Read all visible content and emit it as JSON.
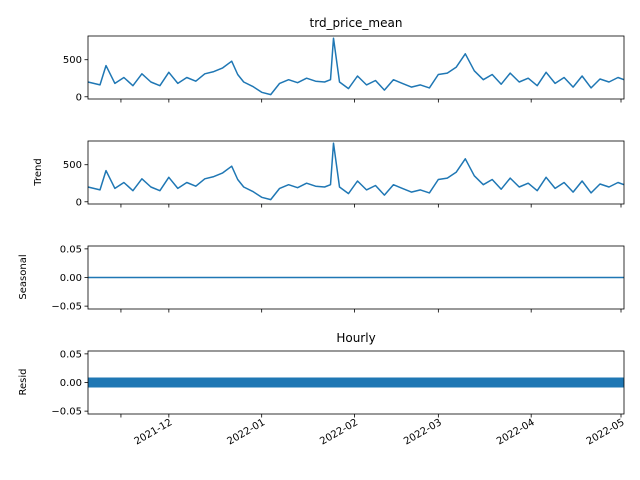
{
  "chart_data": [
    {
      "type": "line",
      "panel": "observed",
      "title": "trd_price_mean",
      "ylabel": "",
      "ylim": [
        -30,
        820
      ],
      "yticks": [
        0,
        500
      ],
      "ytick_labels": [
        "0",
        "500"
      ],
      "series": [
        {
          "color": "#1f77b4",
          "x": [
            "2021-11-04",
            "2021-11-08",
            "2021-11-10",
            "2021-11-13",
            "2021-11-16",
            "2021-11-19",
            "2021-11-22",
            "2021-11-25",
            "2021-11-28",
            "2021-12-01",
            "2021-12-04",
            "2021-12-07",
            "2021-12-10",
            "2021-12-13",
            "2021-12-16",
            "2021-12-19",
            "2021-12-22",
            "2021-12-24",
            "2021-12-26",
            "2021-12-29",
            "2022-01-01",
            "2022-01-04",
            "2022-01-07",
            "2022-01-10",
            "2022-01-13",
            "2022-01-16",
            "2022-01-19",
            "2022-01-22",
            "2022-01-24",
            "2022-01-25",
            "2022-01-27",
            "2022-01-30",
            "2022-02-02",
            "2022-02-05",
            "2022-02-08",
            "2022-02-11",
            "2022-02-14",
            "2022-02-17",
            "2022-02-20",
            "2022-02-23",
            "2022-02-26",
            "2022-03-01",
            "2022-03-04",
            "2022-03-07",
            "2022-03-10",
            "2022-03-13",
            "2022-03-16",
            "2022-03-19",
            "2022-03-22",
            "2022-03-25",
            "2022-03-28",
            "2022-03-31",
            "2022-04-03",
            "2022-04-06",
            "2022-04-09",
            "2022-04-12",
            "2022-04-15",
            "2022-04-18",
            "2022-04-21",
            "2022-04-24",
            "2022-04-27",
            "2022-04-30",
            "2022-05-02"
          ],
          "values": [
            200,
            160,
            420,
            180,
            260,
            150,
            310,
            200,
            150,
            330,
            180,
            260,
            210,
            310,
            340,
            390,
            480,
            300,
            200,
            140,
            60,
            30,
            180,
            230,
            190,
            250,
            210,
            200,
            230,
            790,
            200,
            110,
            280,
            160,
            220,
            90,
            230,
            180,
            130,
            160,
            120,
            300,
            320,
            400,
            580,
            350,
            230,
            300,
            170,
            320,
            200,
            250,
            150,
            330,
            180,
            260,
            130,
            280,
            120,
            240,
            200,
            260,
            230
          ]
        }
      ]
    },
    {
      "type": "line",
      "panel": "trend",
      "title": "",
      "ylabel": "Trend",
      "ylim": [
        -30,
        820
      ],
      "yticks": [
        0,
        500
      ],
      "ytick_labels": [
        "0",
        "500"
      ],
      "series": [
        {
          "color": "#1f77b4",
          "x": [
            "2021-11-04",
            "2021-11-08",
            "2021-11-10",
            "2021-11-13",
            "2021-11-16",
            "2021-11-19",
            "2021-11-22",
            "2021-11-25",
            "2021-11-28",
            "2021-12-01",
            "2021-12-04",
            "2021-12-07",
            "2021-12-10",
            "2021-12-13",
            "2021-12-16",
            "2021-12-19",
            "2021-12-22",
            "2021-12-24",
            "2021-12-26",
            "2021-12-29",
            "2022-01-01",
            "2022-01-04",
            "2022-01-07",
            "2022-01-10",
            "2022-01-13",
            "2022-01-16",
            "2022-01-19",
            "2022-01-22",
            "2022-01-24",
            "2022-01-25",
            "2022-01-27",
            "2022-01-30",
            "2022-02-02",
            "2022-02-05",
            "2022-02-08",
            "2022-02-11",
            "2022-02-14",
            "2022-02-17",
            "2022-02-20",
            "2022-02-23",
            "2022-02-26",
            "2022-03-01",
            "2022-03-04",
            "2022-03-07",
            "2022-03-10",
            "2022-03-13",
            "2022-03-16",
            "2022-03-19",
            "2022-03-22",
            "2022-03-25",
            "2022-03-28",
            "2022-03-31",
            "2022-04-03",
            "2022-04-06",
            "2022-04-09",
            "2022-04-12",
            "2022-04-15",
            "2022-04-18",
            "2022-04-21",
            "2022-04-24",
            "2022-04-27",
            "2022-04-30",
            "2022-05-02"
          ],
          "values": [
            200,
            160,
            420,
            180,
            260,
            150,
            310,
            200,
            150,
            330,
            180,
            260,
            210,
            310,
            340,
            390,
            480,
            300,
            200,
            140,
            60,
            30,
            180,
            230,
            190,
            250,
            210,
            200,
            230,
            790,
            200,
            110,
            280,
            160,
            220,
            90,
            230,
            180,
            130,
            160,
            120,
            300,
            320,
            400,
            580,
            350,
            230,
            300,
            170,
            320,
            200,
            250,
            150,
            330,
            180,
            260,
            130,
            280,
            120,
            240,
            200,
            260,
            230
          ]
        }
      ]
    },
    {
      "type": "line",
      "panel": "seasonal",
      "title": "",
      "ylabel": "Seasonal",
      "ylim": [
        -0.055,
        0.055
      ],
      "yticks": [
        -0.05,
        0.0,
        0.05
      ],
      "ytick_labels": [
        "−0.05",
        "0.00",
        "0.05"
      ],
      "series": [
        {
          "color": "#1f77b4",
          "x": [
            "2021-11-04",
            "2022-05-02"
          ],
          "values": [
            0.0,
            0.0
          ]
        }
      ]
    },
    {
      "type": "area",
      "panel": "resid",
      "title": "Hourly",
      "ylabel": "Resid",
      "ylim": [
        -0.055,
        0.055
      ],
      "yticks": [
        -0.05,
        0.0,
        0.05
      ],
      "ytick_labels": [
        "−0.05",
        "0.00",
        "0.05"
      ],
      "series": [
        {
          "color": "#1f77b4",
          "x": [
            "2021-11-04",
            "2022-05-02"
          ],
          "values": [
            0.0,
            0.0
          ]
        }
      ]
    }
  ],
  "xaxis": {
    "xlim": [
      "2021-11-04",
      "2022-05-02"
    ],
    "ticks": [
      "2021-11-15",
      "2021-12-01",
      "2022-01-01",
      "2022-02-01",
      "2022-03-01",
      "2022-04-01",
      "2022-05-01"
    ],
    "labels": [
      "",
      "2021-12",
      "2022-01",
      "2022-02",
      "2022-03",
      "2022-04",
      "2022-05"
    ]
  }
}
